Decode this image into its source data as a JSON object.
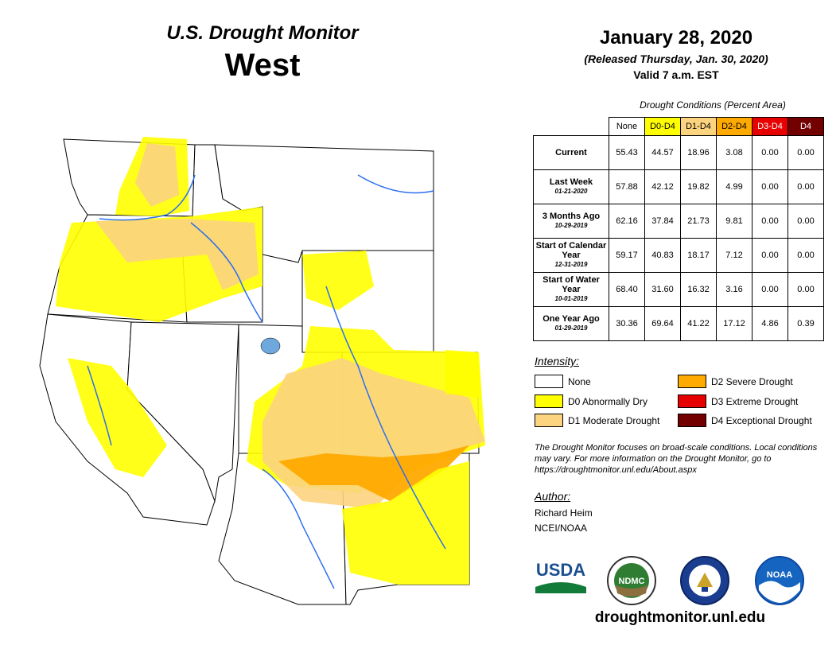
{
  "header": {
    "product_title": "U.S. Drought Monitor",
    "region": "West",
    "map_date": "January 28, 2020",
    "release_note": "(Released Thursday, Jan. 30, 2020)",
    "valid_time": "Valid 7 a.m. EST"
  },
  "table": {
    "caption": "Drought Conditions (Percent Area)",
    "columns": [
      "None",
      "D0-D4",
      "D1-D4",
      "D2-D4",
      "D3-D4",
      "D4"
    ],
    "header_colors": [
      "#ffffff",
      "#ffff00",
      "#fcd37f",
      "#ffaa00",
      "#e60000",
      "#730000"
    ],
    "rows": [
      {
        "label": "Current",
        "date": "",
        "values": [
          "55.43",
          "44.57",
          "18.96",
          "3.08",
          "0.00",
          "0.00"
        ]
      },
      {
        "label": "Last Week",
        "date": "01-21-2020",
        "values": [
          "57.88",
          "42.12",
          "19.82",
          "4.99",
          "0.00",
          "0.00"
        ]
      },
      {
        "label": "3 Months Ago",
        "date": "10-29-2019",
        "values": [
          "62.16",
          "37.84",
          "21.73",
          "9.81",
          "0.00",
          "0.00"
        ]
      },
      {
        "label": "Start of Calendar Year",
        "date": "12-31-2019",
        "values": [
          "59.17",
          "40.83",
          "18.17",
          "7.12",
          "0.00",
          "0.00"
        ]
      },
      {
        "label": "Start of Water Year",
        "date": "10-01-2019",
        "values": [
          "68.40",
          "31.60",
          "16.32",
          "3.16",
          "0.00",
          "0.00"
        ]
      },
      {
        "label": "One Year Ago",
        "date": "01-29-2019",
        "values": [
          "30.36",
          "69.64",
          "41.22",
          "17.12",
          "4.86",
          "0.39"
        ]
      }
    ]
  },
  "legend": {
    "title": "Intensity:",
    "items": [
      {
        "label": "None",
        "color": "#ffffff"
      },
      {
        "label": "D0 Abnormally Dry",
        "color": "#ffff00"
      },
      {
        "label": "D1 Moderate Drought",
        "color": "#fcd37f"
      },
      {
        "label": "D2 Severe Drought",
        "color": "#ffaa00"
      },
      {
        "label": "D3 Extreme Drought",
        "color": "#e60000"
      },
      {
        "label": "D4 Exceptional Drought",
        "color": "#730000"
      }
    ]
  },
  "disclaimer": "The Drought Monitor focuses on broad-scale conditions. Local conditions may vary. For more information on the Drought Monitor, go to https://droughtmonitor.unl.edu/About.aspx",
  "author": {
    "title": "Author:",
    "name": "Richard Heim",
    "org": "NCEI/NOAA"
  },
  "logos": {
    "usda": "USDA",
    "ndmc": "NDMC",
    "noaa": "NOAA"
  },
  "website": "droughtmonitor.unl.edu"
}
